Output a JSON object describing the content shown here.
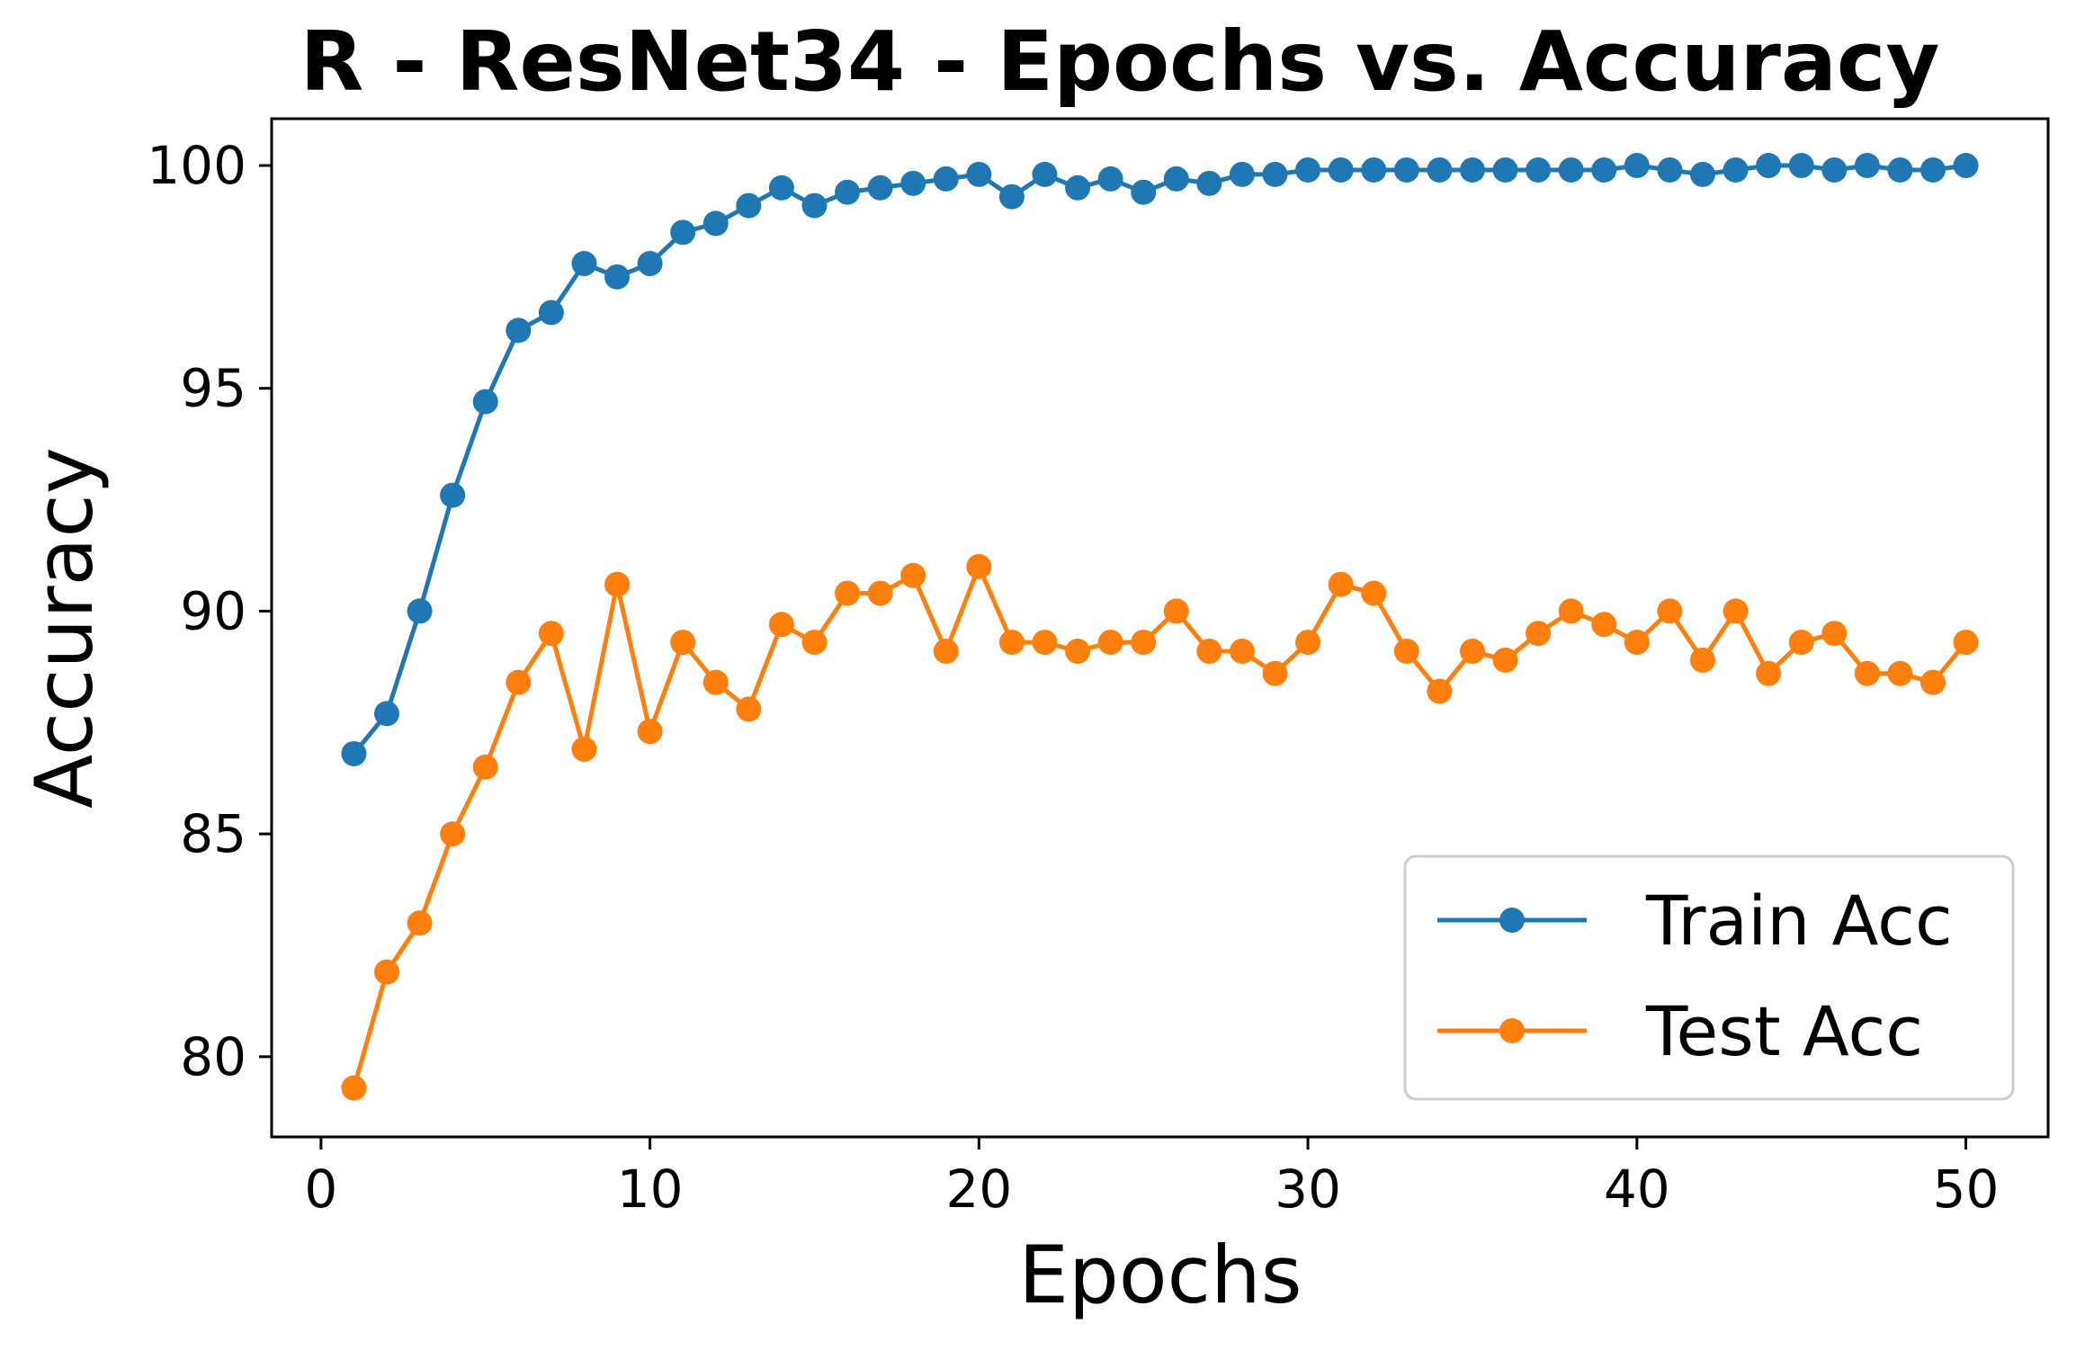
{
  "chart_data": {
    "type": "line",
    "title": "R - ResNet34 - Epochs vs. Accuracy",
    "xlabel": "Epochs",
    "ylabel": "Accuracy",
    "xlim": [
      -1.5,
      52.5
    ],
    "ylim": [
      78.2,
      101.05
    ],
    "xticks": [
      0,
      10,
      20,
      30,
      40,
      50
    ],
    "yticks": [
      80,
      85,
      90,
      95,
      100
    ],
    "grid": false,
    "legend_position": "lower-right",
    "x": [
      1,
      2,
      3,
      4,
      5,
      6,
      7,
      8,
      9,
      10,
      11,
      12,
      13,
      14,
      15,
      16,
      17,
      18,
      19,
      20,
      21,
      22,
      23,
      24,
      25,
      26,
      27,
      28,
      29,
      30,
      31,
      32,
      33,
      34,
      35,
      36,
      37,
      38,
      39,
      40,
      41,
      42,
      43,
      44,
      45,
      46,
      47,
      48,
      49,
      50
    ],
    "series": [
      {
        "name": "Train Acc",
        "color": "#1f77b4",
        "values": [
          86.8,
          87.7,
          90.0,
          92.6,
          94.7,
          96.3,
          96.7,
          97.8,
          97.5,
          97.8,
          98.5,
          98.7,
          99.1,
          99.5,
          99.1,
          99.4,
          99.5,
          99.6,
          99.7,
          99.8,
          99.3,
          99.8,
          99.5,
          99.7,
          99.4,
          99.7,
          99.6,
          99.8,
          99.8,
          99.9,
          99.9,
          99.9,
          99.9,
          99.9,
          99.9,
          99.9,
          99.9,
          99.9,
          99.9,
          100.0,
          99.9,
          99.8,
          99.9,
          100.0,
          100.0,
          99.9,
          100.0,
          99.9,
          99.9,
          100.0
        ]
      },
      {
        "name": "Test Acc",
        "color": "#ff7f0e",
        "values": [
          79.3,
          81.9,
          83.0,
          85.0,
          86.5,
          88.4,
          89.5,
          86.9,
          90.6,
          87.3,
          89.3,
          88.4,
          87.8,
          89.7,
          89.3,
          90.4,
          90.4,
          90.8,
          89.1,
          91.0,
          89.3,
          89.3,
          89.1,
          89.3,
          89.3,
          90.0,
          89.1,
          89.1,
          88.6,
          89.3,
          90.6,
          90.4,
          89.1,
          88.2,
          89.1,
          88.9,
          89.5,
          90.0,
          89.7,
          89.3,
          90.0,
          88.9,
          90.0,
          88.6,
          89.3,
          89.5,
          88.6,
          88.6,
          88.4,
          89.3
        ]
      }
    ]
  }
}
